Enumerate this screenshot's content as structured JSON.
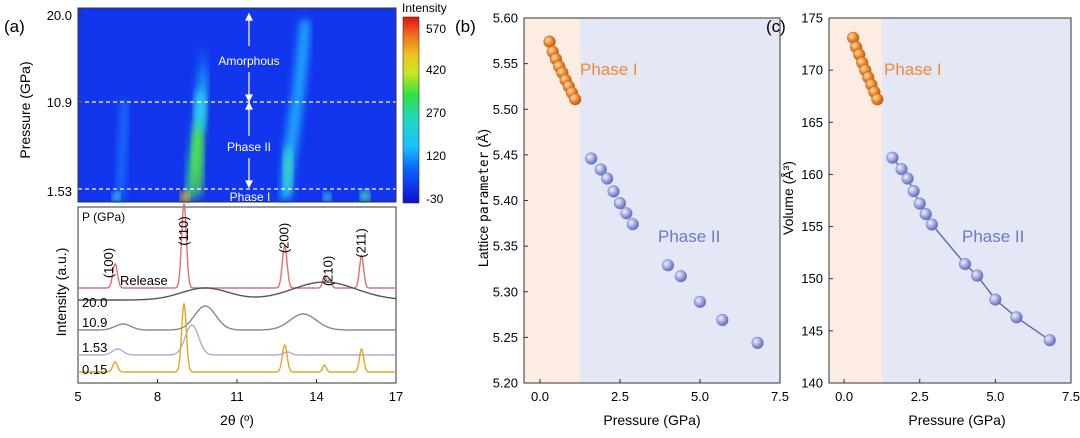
{
  "chart_data": [
    {
      "panel_label": "(a)",
      "type": "heatmap",
      "ylabel": "Pressure (GPa)",
      "y_ticks": [
        "20.0",
        "10.9",
        "1.53"
      ],
      "colorbar": {
        "title": "Intensity",
        "ticks": [
          "570",
          "420",
          "270",
          "120",
          "-30"
        ],
        "range": [
          -30,
          570
        ]
      },
      "annotations": [
        "Amorphous",
        "Phase II",
        "Phase I"
      ],
      "phase_boundaries": [
        "10.9",
        "1.53"
      ]
    },
    {
      "panel_label": "(a)",
      "type": "line",
      "xlabel": "2θ (º)",
      "ylabel": "Intensity (a.u.)",
      "x_ticks": [
        "5",
        "8",
        "11",
        "14",
        "17"
      ],
      "xlim": [
        5,
        17
      ],
      "legend_title": "P (GPa)",
      "series": [
        {
          "name": "Release",
          "color": "#e07070"
        },
        {
          "name": "20.0",
          "color": "#555555"
        },
        {
          "name": "10.9",
          "color": "#888888"
        },
        {
          "name": "1.53",
          "color": "#b8a8d8"
        },
        {
          "name": "0.15",
          "color": "#e0a820"
        }
      ],
      "peak_labels": [
        {
          "label": "(100)",
          "x": 6.4
        },
        {
          "label": "(110)",
          "x": 9.0
        },
        {
          "label": "(200)",
          "x": 12.8
        },
        {
          "label": "(210)",
          "x": 14.3
        },
        {
          "label": "(211)",
          "x": 15.7
        }
      ]
    },
    {
      "panel_label": "(b)",
      "type": "scatter",
      "xlabel": "Pressure (GPa)",
      "ylabel_main": "Lattice ",
      "ylabel_mono": "parameter",
      "ylabel_unit": " (Å)",
      "xlim": [
        -0.5,
        7.5
      ],
      "ylim": [
        5.2,
        5.6
      ],
      "x_ticks": [
        "0.0",
        "2.5",
        "5.0",
        "7.5"
      ],
      "y_ticks": [
        "5.20",
        "5.25",
        "5.30",
        "5.35",
        "5.40",
        "5.45",
        "5.50",
        "5.55",
        "5.60"
      ],
      "phase_split": 1.25,
      "regions": [
        "Phase I",
        "Phase II"
      ],
      "series": [
        {
          "name": "Phase I",
          "color": "#f08a30",
          "x": [
            0.3,
            0.4,
            0.5,
            0.6,
            0.7,
            0.8,
            0.9,
            1.0,
            1.1
          ],
          "y": [
            5.574,
            5.563,
            5.555,
            5.547,
            5.54,
            5.532,
            5.525,
            5.518,
            5.511
          ]
        },
        {
          "name": "Phase II",
          "color": "#8a96d8",
          "x": [
            1.6,
            1.9,
            2.1,
            2.3,
            2.5,
            2.7,
            2.9,
            4.0,
            4.4,
            5.0,
            5.7,
            6.8
          ],
          "y": [
            5.446,
            5.434,
            5.424,
            5.41,
            5.397,
            5.386,
            5.374,
            5.329,
            5.317,
            5.289,
            5.269,
            5.244
          ]
        }
      ]
    },
    {
      "panel_label": "(c)",
      "type": "scatter",
      "xlabel": "Pressure (GPa)",
      "ylabel": "Volume (Å³)",
      "xlim": [
        -0.5,
        7.5
      ],
      "ylim": [
        140,
        175
      ],
      "x_ticks": [
        "0.0",
        "2.5",
        "5.0",
        "7.5"
      ],
      "y_ticks": [
        "140",
        "145",
        "150",
        "155",
        "160",
        "165",
        "170",
        "175"
      ],
      "phase_split": 1.25,
      "regions": [
        "Phase I",
        "Phase II"
      ],
      "series": [
        {
          "name": "Phase I",
          "color": "#f08a30",
          "x": [
            0.3,
            0.4,
            0.5,
            0.6,
            0.7,
            0.8,
            0.9,
            1.0,
            1.1
          ],
          "y": [
            173.1,
            172.2,
            171.5,
            170.7,
            170.0,
            169.3,
            168.6,
            167.9,
            167.2
          ]
        },
        {
          "name": "Phase II",
          "color": "#8a96d8",
          "x": [
            1.6,
            1.9,
            2.1,
            2.3,
            2.5,
            2.7,
            2.9,
            4.0,
            4.4,
            5.0,
            5.7,
            6.8
          ],
          "y": [
            161.6,
            160.5,
            159.6,
            158.4,
            157.2,
            156.2,
            155.2,
            151.4,
            150.3,
            148.0,
            146.3,
            144.1
          ]
        }
      ]
    }
  ]
}
